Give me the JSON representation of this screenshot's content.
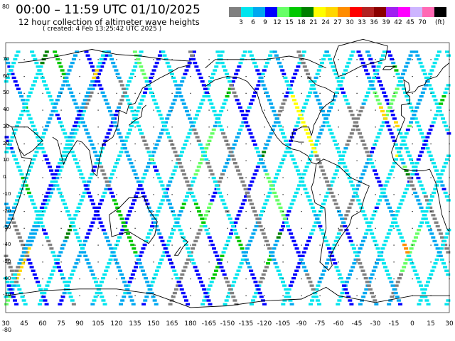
{
  "header": {
    "title": "00:00 – 11:59 UTC 01/10/2025",
    "subtitle": "12 hour collection of altimeter wave heights",
    "created": "( created:  4 Feb 13:25:42 UTC 2025 )",
    "lat_top": "80",
    "lat_bottom": "-80"
  },
  "legend": {
    "unit": "(ft)",
    "labels": [
      "3",
      "6",
      "9",
      "12",
      "15",
      "18",
      "21",
      "24",
      "27",
      "30",
      "33",
      "36",
      "39",
      "42",
      "45",
      "70"
    ],
    "colors": [
      "#808080",
      "#00e5ee",
      "#00a8f0",
      "#0000ff",
      "#66ff66",
      "#00c800",
      "#008000",
      "#ffff00",
      "#ffd700",
      "#ff8c00",
      "#ff0000",
      "#b22222",
      "#8b0000",
      "#a020f0",
      "#ff00ff",
      "#cdb5ff",
      "#ff69b4",
      "#000000"
    ]
  },
  "axes": {
    "x_labels": [
      "30",
      "45",
      "60",
      "75",
      "90",
      "105",
      "120",
      "135",
      "150",
      "165",
      "180",
      "-165",
      "-150",
      "-135",
      "-120",
      "-105",
      "-90",
      "-75",
      "-60",
      "-45",
      "-30",
      "-15",
      "0",
      "15",
      "30"
    ],
    "y_labels": [
      "70",
      "60",
      "50",
      "40",
      "30",
      "20",
      "10",
      "0",
      "-10",
      "-20",
      "-30",
      "-40",
      "-50",
      "-60",
      "-70"
    ],
    "colors": {
      "coast": "#000000",
      "grid": "#000000"
    }
  }
}
